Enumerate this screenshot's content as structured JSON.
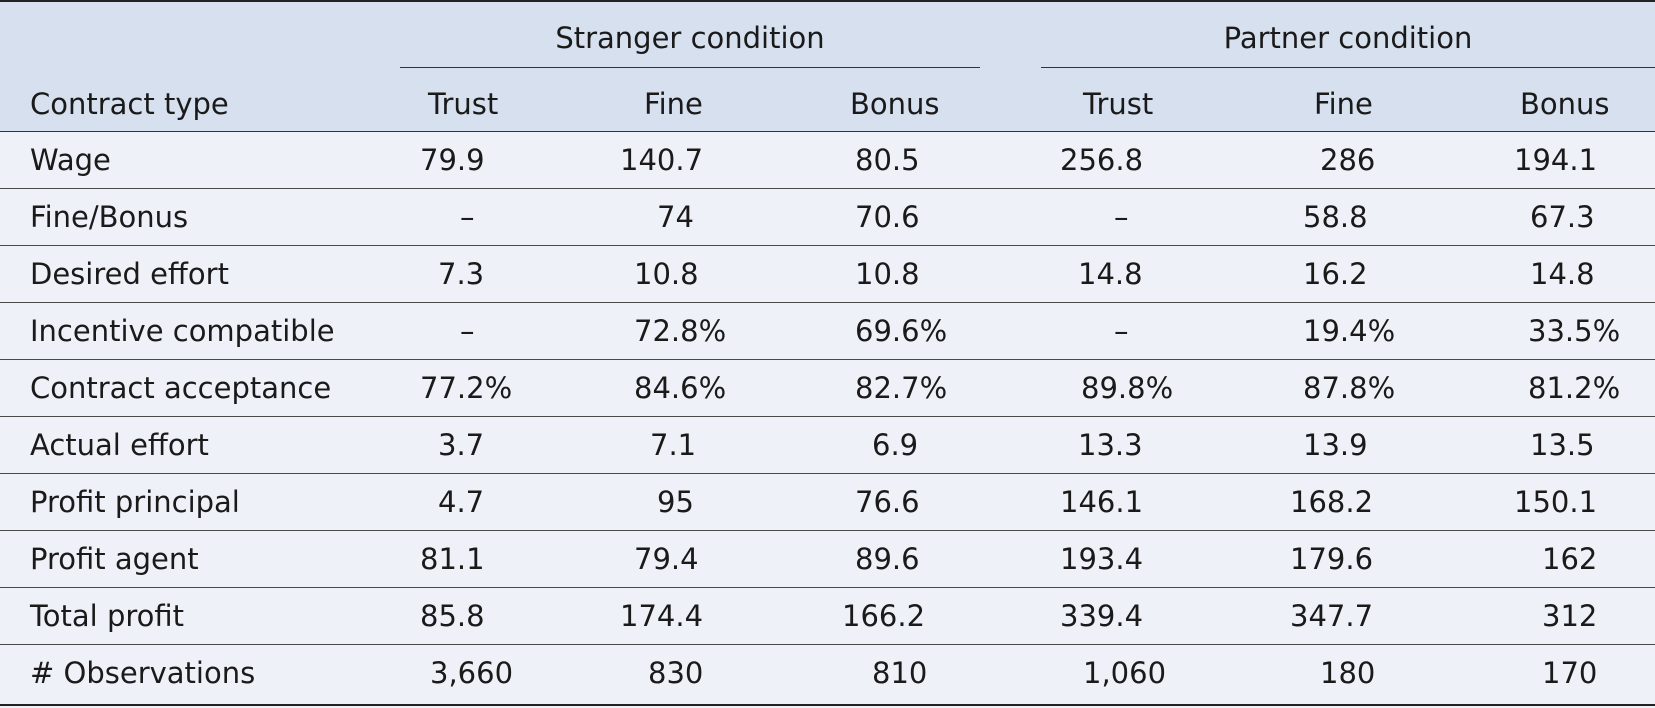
{
  "table": {
    "groups": [
      {
        "label": "Stranger condition"
      },
      {
        "label": "Partner condition"
      }
    ],
    "row_header": "Contract type",
    "columns": [
      "Trust",
      "Fine",
      "Bonus",
      "Trust",
      "Fine",
      "Bonus"
    ],
    "rows": [
      {
        "label": "Wage",
        "cells": [
          "79.9",
          "140.7",
          "80.5",
          "256.8",
          "286",
          "194.1"
        ]
      },
      {
        "label": "Fine/Bonus",
        "cells": [
          "–",
          "74",
          "70.6",
          "–",
          "58.8",
          "67.3"
        ]
      },
      {
        "label": "Desired effort",
        "cells": [
          "7.3",
          "10.8",
          "10.8",
          "14.8",
          "16.2",
          "14.8"
        ]
      },
      {
        "label": "Incentive compatible",
        "cells": [
          "–",
          "72.8%",
          "69.6%",
          "–",
          "19.4%",
          "33.5%"
        ]
      },
      {
        "label": "Contract acceptance",
        "cells": [
          "77.2%",
          "84.6%",
          "82.7%",
          "89.8%",
          "87.8%",
          "81.2%"
        ]
      },
      {
        "label": "Actual effort",
        "cells": [
          "3.7",
          "7.1",
          "6.9",
          "13.3",
          "13.9",
          "13.5"
        ]
      },
      {
        "label": "Profit principal",
        "cells": [
          "4.7",
          "95",
          "76.6",
          "146.1",
          "168.2",
          "150.1"
        ]
      },
      {
        "label": "Profit agent",
        "cells": [
          "81.1",
          "79.4",
          "89.6",
          "193.4",
          "179.6",
          "162"
        ]
      },
      {
        "label": "Total profit",
        "cells": [
          "85.8",
          "174.4",
          "166.2",
          "339.4",
          "347.7",
          "312"
        ]
      },
      {
        "label": "# Observations",
        "cells": [
          "3,660",
          "830",
          "810",
          "1,060",
          "180",
          "170"
        ]
      }
    ]
  }
}
